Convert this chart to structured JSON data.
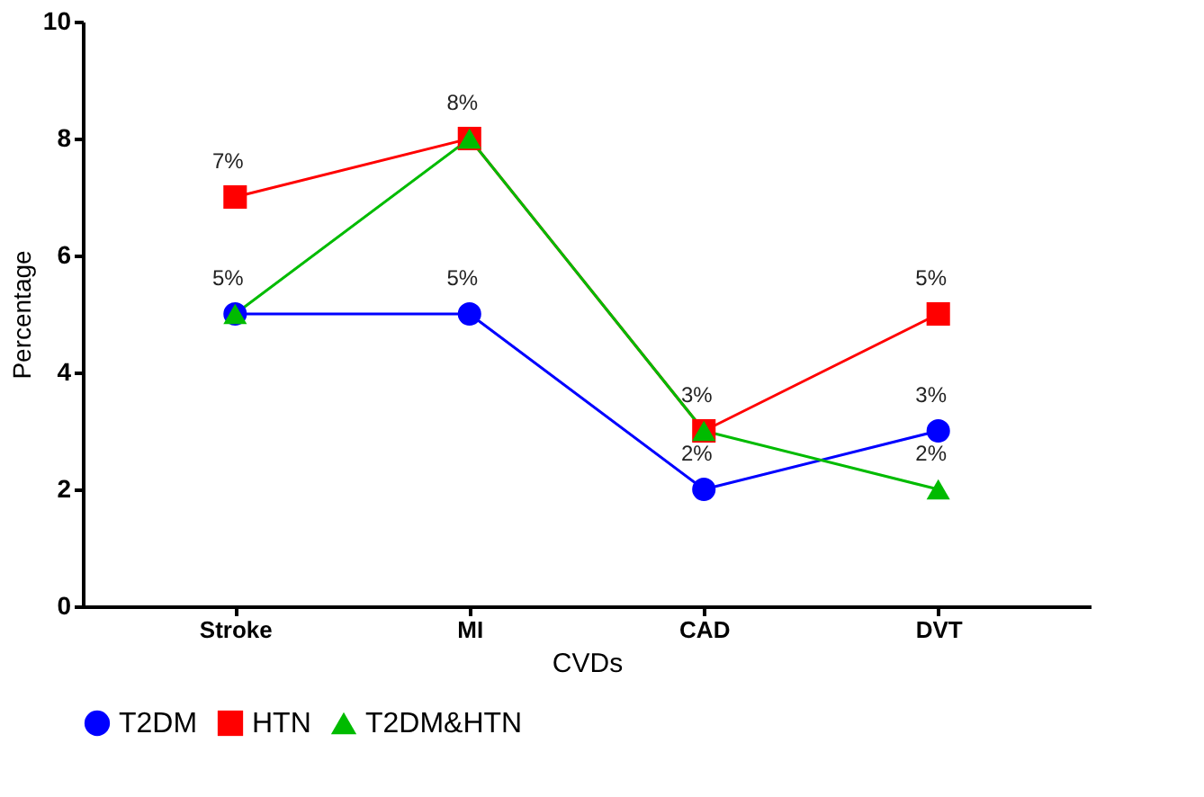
{
  "chart_data": {
    "type": "line",
    "xlabel": "CVDs",
    "ylabel": "Percentage",
    "categories": [
      "Stroke",
      "MI",
      "CAD",
      "DVT"
    ],
    "series": [
      {
        "name": "T2DM",
        "color": "#0000ff",
        "marker": "circle",
        "values": [
          5,
          5,
          2,
          3
        ],
        "value_labels": [
          "5%",
          "5%",
          "2%",
          "3%"
        ]
      },
      {
        "name": "HTN",
        "color": "#ff0000",
        "marker": "square",
        "values": [
          7,
          8,
          3,
          5
        ],
        "value_labels": [
          "7%",
          "8%",
          "3%",
          "5%"
        ]
      },
      {
        "name": "T2DM&HTN",
        "color": "#00bb00",
        "marker": "triangle",
        "values": [
          5,
          8,
          3,
          2
        ],
        "value_labels": [
          null,
          null,
          null,
          "2%"
        ]
      }
    ],
    "ylim": [
      0,
      10
    ],
    "yticks": [
      0,
      2,
      4,
      6,
      8,
      10
    ],
    "grid": false,
    "legend": "bottom",
    "line_style": "solid"
  }
}
